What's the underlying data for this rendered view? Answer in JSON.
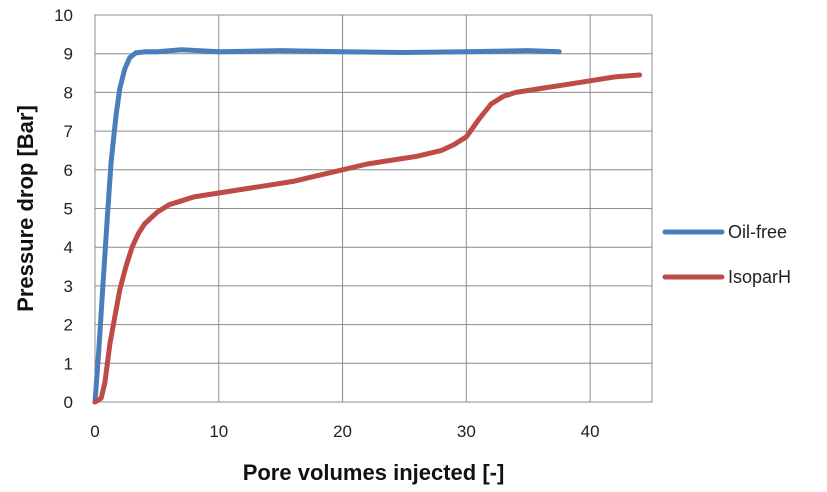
{
  "chart_data": {
    "type": "line",
    "title": "",
    "xlabel": "Pore volumes injected [-]",
    "ylabel": "Pressure drop [Bar]",
    "xlim": [
      0,
      45
    ],
    "ylim": [
      0,
      10
    ],
    "xticks": [
      0,
      10,
      20,
      30,
      40
    ],
    "yticks": [
      0,
      1,
      2,
      3,
      4,
      5,
      6,
      7,
      8,
      9,
      10
    ],
    "grid": true,
    "legend_position": "right",
    "series": [
      {
        "name": "Oil-free",
        "color": "#4a7ebb",
        "x": [
          0,
          0.3,
          0.6,
          1.0,
          1.3,
          1.7,
          2.0,
          2.4,
          2.8,
          3.3,
          4.0,
          5.0,
          7.0,
          10,
          15,
          20,
          25,
          30,
          35,
          37.5
        ],
        "y": [
          0,
          1.3,
          2.8,
          4.8,
          6.2,
          7.4,
          8.1,
          8.6,
          8.9,
          9.02,
          9.05,
          9.05,
          9.1,
          9.05,
          9.08,
          9.05,
          9.03,
          9.05,
          9.08,
          9.05
        ]
      },
      {
        "name": "IsoparH",
        "color": "#be4b48",
        "x": [
          0,
          0.5,
          0.8,
          1.2,
          1.6,
          2.0,
          2.5,
          3.0,
          3.5,
          4.0,
          5.0,
          6.0,
          7.0,
          8.0,
          10,
          12,
          14,
          16,
          18,
          20,
          22,
          24,
          26,
          28,
          29,
          30,
          31,
          32,
          33,
          34,
          35,
          36,
          38,
          40,
          42,
          44
        ],
        "y": [
          0,
          0.1,
          0.5,
          1.5,
          2.2,
          2.9,
          3.5,
          4.0,
          4.35,
          4.6,
          4.9,
          5.1,
          5.2,
          5.3,
          5.4,
          5.5,
          5.6,
          5.7,
          5.85,
          6.0,
          6.15,
          6.25,
          6.35,
          6.5,
          6.65,
          6.85,
          7.3,
          7.7,
          7.9,
          8.0,
          8.05,
          8.1,
          8.2,
          8.3,
          8.4,
          8.45
        ]
      }
    ]
  }
}
